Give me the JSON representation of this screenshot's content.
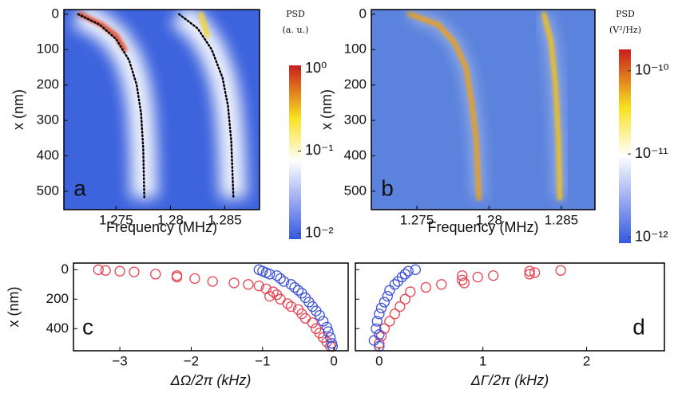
{
  "chart_data": [
    {
      "type": "heatmap",
      "label": "a",
      "xlabel": "Frequency (MHz)",
      "ylabel": "x (nm)",
      "xlim": [
        1.2702,
        1.2882
      ],
      "ylim": [
        552,
        -13
      ],
      "xticks": [
        1.275,
        1.28,
        1.285
      ],
      "yticks": [
        0,
        100,
        200,
        300,
        400,
        500
      ],
      "colorbar": {
        "title": [
          "PSD",
          "(a. u.)"
        ],
        "scale": "log",
        "lim": [
          0.0085,
          1.1
        ],
        "ticks": [
          {
            "value": 1,
            "label": "10⁰"
          },
          {
            "value": 0.1,
            "label": "10⁻¹"
          },
          {
            "value": 0.01,
            "label": "10⁻²"
          }
        ]
      },
      "background": "#3d63dd",
      "curves": [
        {
          "x": [
            1.2715,
            1.2735,
            1.275,
            1.2762,
            1.2769,
            1.2773,
            1.2775,
            1.2776
          ],
          "y": [
            0,
            30,
            70,
            130,
            200,
            280,
            380,
            520
          ]
        },
        {
          "x": [
            1.2808,
            1.2825,
            1.2838,
            1.2848,
            1.2853,
            1.2856,
            1.2858
          ],
          "y": [
            0,
            40,
            100,
            180,
            260,
            360,
            520
          ]
        }
      ],
      "ridges": [
        {
          "color": "#e0482a",
          "x": [
            1.2717,
            1.2737,
            1.275,
            1.2758
          ],
          "y": [
            0,
            30,
            60,
            100
          ]
        },
        {
          "color": "#f5d530",
          "x": [
            1.2828,
            1.2831,
            1.2834
          ],
          "y": [
            0,
            30,
            60
          ]
        }
      ]
    },
    {
      "type": "heatmap",
      "label": "b",
      "xlabel": "Frequency (MHz)",
      "ylabel": "x (nm)",
      "xlim": [
        1.27185,
        1.28733
      ],
      "ylim": [
        552,
        -13
      ],
      "xticks": [
        1.275,
        1.28,
        1.285
      ],
      "yticks": [
        0,
        100,
        200,
        300,
        400,
        500
      ],
      "colorbar": {
        "title": [
          "PSD",
          "(V²/Hz)"
        ],
        "scale": "log",
        "lim": [
          8.5e-13,
          1.8e-10
        ],
        "ticks": [
          {
            "value": 1e-10,
            "label": "10⁻¹⁰"
          },
          {
            "value": 1e-11,
            "label": "10⁻¹¹"
          },
          {
            "value": 1e-12,
            "label": "10⁻¹²"
          }
        ]
      },
      "background": "#5b82dc",
      "ridges": [
        {
          "color": "#e8a020",
          "x": [
            1.2745,
            1.2765,
            1.2776,
            1.2784,
            1.2788,
            1.2791,
            1.2793
          ],
          "y": [
            0,
            30,
            80,
            150,
            250,
            350,
            520
          ]
        },
        {
          "color": "#f0c020",
          "x": [
            1.2838,
            1.2843,
            1.2846,
            1.2848,
            1.2849
          ],
          "y": [
            0,
            80,
            200,
            350,
            520
          ]
        }
      ]
    },
    {
      "type": "scatter",
      "label": "c",
      "xlabel": "ΔΩ/2π (kHz)",
      "ylabel": "x (nm)",
      "xlim": [
        -3.65,
        0.2
      ],
      "ylim": [
        550,
        -45
      ],
      "xticks": [
        {
          "value": -3,
          "label": "−3"
        },
        {
          "value": -2,
          "label": "−2"
        },
        {
          "value": -1,
          "label": "−1"
        },
        0
      ],
      "yticks": [
        0,
        200,
        400
      ],
      "series": [
        {
          "color": "#e8414f",
          "x": [
            -3.3,
            -3.2,
            -3.0,
            -2.8,
            -2.5,
            -2.2,
            -2.2,
            -1.95,
            -1.7,
            -1.4,
            -1.2,
            -1.05,
            -0.95,
            -0.85,
            -0.8,
            -0.9,
            -0.75,
            -0.65,
            -0.6,
            -0.5,
            -0.45,
            -0.4,
            -0.3,
            -0.25,
            -0.2,
            -0.15,
            -0.1,
            -0.05
          ],
          "y": [
            0,
            5,
            10,
            15,
            30,
            40,
            50,
            60,
            80,
            90,
            100,
            110,
            130,
            150,
            170,
            180,
            200,
            230,
            250,
            270,
            300,
            330,
            360,
            400,
            430,
            460,
            490,
            520
          ]
        },
        {
          "color": "#3c50d8",
          "x": [
            -1.05,
            -1.0,
            -0.95,
            -0.9,
            -0.8,
            -0.75,
            -0.7,
            -0.6,
            -0.55,
            -0.5,
            -0.45,
            -0.4,
            -0.35,
            -0.3,
            -0.25,
            -0.2,
            -0.15,
            -0.1,
            -0.08,
            -0.05,
            -0.03,
            -0.02
          ],
          "y": [
            0,
            10,
            20,
            30,
            40,
            60,
            80,
            100,
            120,
            140,
            160,
            190,
            220,
            250,
            280,
            310,
            350,
            390,
            420,
            460,
            500,
            520
          ]
        }
      ]
    },
    {
      "type": "scatter",
      "label": "d",
      "xlabel": "ΔΓ/2π (kHz)",
      "xlim": [
        -0.23,
        2.75
      ],
      "ylim": [
        550,
        -45
      ],
      "xticks": [
        0,
        1,
        2
      ],
      "yticks": [
        0,
        200,
        400
      ],
      "series": [
        {
          "color": "#e8414f",
          "x": [
            1.75,
            1.5,
            1.45,
            1.45,
            1.1,
            0.95,
            0.8,
            0.8,
            0.82,
            0.6,
            0.45,
            0.3,
            0.25,
            0.2,
            0.15,
            0.1,
            0.05,
            0.02,
            0.0
          ],
          "y": [
            5,
            20,
            30,
            10,
            40,
            50,
            70,
            40,
            90,
            100,
            120,
            150,
            200,
            250,
            300,
            350,
            400,
            450,
            500
          ]
        },
        {
          "color": "#3c50d8",
          "x": [
            0.35,
            0.28,
            0.25,
            0.22,
            0.18,
            0.15,
            0.1,
            0.08,
            0.05,
            0.02,
            0.0,
            -0.02,
            -0.03,
            0.0,
            -0.05,
            0.0
          ],
          "y": [
            0,
            10,
            30,
            50,
            80,
            100,
            140,
            180,
            220,
            260,
            300,
            350,
            400,
            440,
            480,
            520
          ]
        }
      ]
    }
  ]
}
